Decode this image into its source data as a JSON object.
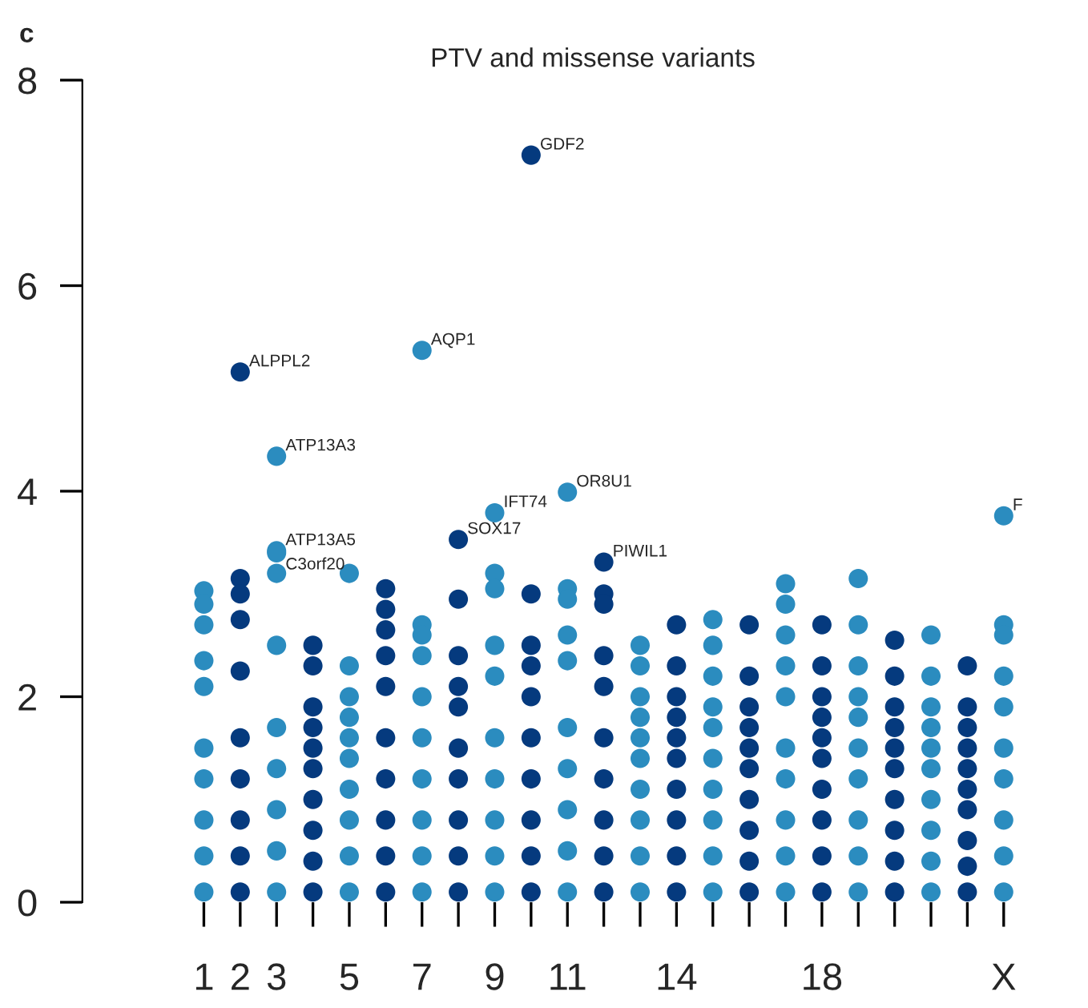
{
  "chart_data": {
    "type": "scatter",
    "title": "PTV and missense variants",
    "categories": [
      "1",
      "2",
      "3",
      null,
      "5",
      null,
      "7",
      null,
      "9",
      null,
      "11",
      null,
      null,
      "14",
      null,
      null,
      null,
      "18",
      null,
      null,
      null,
      null,
      "X"
    ],
    "annotations": [
      "c"
    ],
    "ylim": [
      0,
      8
    ],
    "yticks": [
      0,
      2,
      4,
      6,
      8
    ],
    "grid": false,
    "legend": false,
    "marker": "circle",
    "series": [
      {
        "values": [
          3.03,
          5.16,
          4.34,
          2.5,
          3.2,
          3.05,
          5.37,
          3.53,
          3.79,
          7.27,
          3.99,
          3.31,
          2.5,
          2.7,
          2.75,
          2.7,
          3.1,
          2.7,
          3.15,
          2.55,
          2.6,
          2.3,
          3.76
        ],
        "value_labels": [
          null,
          "ALPPL2",
          "ATP13A3",
          null,
          null,
          null,
          "AQP1",
          "SOX17",
          "IFT74",
          "GDF2",
          "OR8U1",
          "PIWIL1",
          null,
          null,
          null,
          null,
          null,
          null,
          null,
          null,
          null,
          null,
          "F"
        ],
        "colors": [
          "#2b8cbf",
          "#053a7e",
          "#2b8cbf",
          "#053a7e",
          "#2b8cbf",
          "#053a7e",
          "#2b8cbf",
          "#053a7e",
          "#2b8cbf",
          "#053a7e",
          "#2b8cbf",
          "#053a7e",
          "#2b8cbf",
          "#053a7e",
          "#2b8cbf",
          "#053a7e",
          "#2b8cbf",
          "#053a7e",
          "#2b8cbf",
          "#053a7e",
          "#2b8cbf",
          "#053a7e",
          "#2b8cbf"
        ]
      },
      {
        "values": [
          2.9,
          3.15,
          3.42,
          2.3,
          2.3,
          2.85,
          2.7,
          2.95,
          3.2,
          3.0,
          3.05,
          3.0,
          2.3,
          2.3,
          2.5,
          2.2,
          2.9,
          2.3,
          2.7,
          2.2,
          2.2,
          1.9,
          2.7
        ],
        "value_labels": [
          null,
          null,
          "ATP13A5",
          null,
          null,
          null,
          null,
          null,
          null,
          null,
          null,
          null,
          null,
          null,
          null,
          null,
          null,
          null,
          null,
          null,
          null,
          null,
          null
        ],
        "colors": [
          "#2b8cbf",
          "#053a7e",
          "#2b8cbf",
          "#053a7e",
          "#2b8cbf",
          "#053a7e",
          "#2b8cbf",
          "#053a7e",
          "#2b8cbf",
          "#053a7e",
          "#2b8cbf",
          "#053a7e",
          "#2b8cbf",
          "#053a7e",
          "#2b8cbf",
          "#053a7e",
          "#2b8cbf",
          "#053a7e",
          "#2b8cbf",
          "#053a7e",
          "#2b8cbf",
          "#053a7e",
          "#2b8cbf"
        ]
      },
      {
        "values": [
          2.7,
          3.0,
          3.4,
          1.9,
          2.0,
          2.65,
          2.6,
          2.4,
          3.05,
          2.5,
          2.95,
          2.9,
          2.0,
          2.0,
          2.2,
          1.9,
          2.6,
          2.0,
          2.3,
          1.9,
          1.9,
          1.7,
          2.6
        ],
        "value_labels": [
          null,
          null,
          "C3orf20",
          null,
          null,
          null,
          null,
          null,
          null,
          null,
          null,
          null,
          null,
          null,
          null,
          null,
          null,
          null,
          null,
          null,
          null,
          null,
          null
        ],
        "colors": [
          "#2b8cbf",
          "#053a7e",
          "#2b8cbf",
          "#053a7e",
          "#2b8cbf",
          "#053a7e",
          "#2b8cbf",
          "#053a7e",
          "#2b8cbf",
          "#053a7e",
          "#2b8cbf",
          "#053a7e",
          "#2b8cbf",
          "#053a7e",
          "#2b8cbf",
          "#053a7e",
          "#2b8cbf",
          "#053a7e",
          "#2b8cbf",
          "#053a7e",
          "#2b8cbf",
          "#053a7e",
          "#2b8cbf"
        ]
      },
      {
        "values": [
          2.35,
          2.75,
          3.2,
          1.7,
          1.8,
          2.4,
          2.4,
          2.1,
          2.5,
          2.3,
          2.6,
          2.4,
          1.8,
          1.8,
          1.9,
          1.7,
          2.3,
          1.8,
          2.0,
          1.7,
          1.7,
          1.5,
          2.2
        ],
        "colors": [
          "#2b8cbf",
          "#053a7e",
          "#2b8cbf",
          "#053a7e",
          "#2b8cbf",
          "#053a7e",
          "#2b8cbf",
          "#053a7e",
          "#2b8cbf",
          "#053a7e",
          "#2b8cbf",
          "#053a7e",
          "#2b8cbf",
          "#053a7e",
          "#2b8cbf",
          "#053a7e",
          "#2b8cbf",
          "#053a7e",
          "#2b8cbf",
          "#053a7e",
          "#2b8cbf",
          "#053a7e",
          "#2b8cbf"
        ]
      },
      {
        "values": [
          2.1,
          2.25,
          2.5,
          1.5,
          1.6,
          2.1,
          2.0,
          1.9,
          2.2,
          2.0,
          2.35,
          2.1,
          1.6,
          1.6,
          1.7,
          1.5,
          2.0,
          1.6,
          1.8,
          1.5,
          1.5,
          1.3,
          1.9
        ],
        "colors": [
          "#2b8cbf",
          "#053a7e",
          "#2b8cbf",
          "#053a7e",
          "#2b8cbf",
          "#053a7e",
          "#2b8cbf",
          "#053a7e",
          "#2b8cbf",
          "#053a7e",
          "#2b8cbf",
          "#053a7e",
          "#2b8cbf",
          "#053a7e",
          "#2b8cbf",
          "#053a7e",
          "#2b8cbf",
          "#053a7e",
          "#2b8cbf",
          "#053a7e",
          "#2b8cbf",
          "#053a7e",
          "#2b8cbf"
        ]
      },
      {
        "values": [
          1.5,
          1.6,
          1.7,
          1.3,
          1.4,
          1.6,
          1.6,
          1.5,
          1.6,
          1.6,
          1.7,
          1.6,
          1.4,
          1.4,
          1.4,
          1.3,
          1.5,
          1.4,
          1.5,
          1.3,
          1.3,
          1.1,
          1.5
        ],
        "colors": [
          "#2b8cbf",
          "#053a7e",
          "#2b8cbf",
          "#053a7e",
          "#2b8cbf",
          "#053a7e",
          "#2b8cbf",
          "#053a7e",
          "#2b8cbf",
          "#053a7e",
          "#2b8cbf",
          "#053a7e",
          "#2b8cbf",
          "#053a7e",
          "#2b8cbf",
          "#053a7e",
          "#2b8cbf",
          "#053a7e",
          "#2b8cbf",
          "#053a7e",
          "#2b8cbf",
          "#053a7e",
          "#2b8cbf"
        ]
      },
      {
        "values": [
          1.2,
          1.2,
          1.3,
          1.0,
          1.1,
          1.2,
          1.2,
          1.2,
          1.2,
          1.2,
          1.3,
          1.2,
          1.1,
          1.1,
          1.1,
          1.0,
          1.2,
          1.1,
          1.2,
          1.0,
          1.0,
          0.9,
          1.2
        ],
        "colors": [
          "#2b8cbf",
          "#053a7e",
          "#2b8cbf",
          "#053a7e",
          "#2b8cbf",
          "#053a7e",
          "#2b8cbf",
          "#053a7e",
          "#2b8cbf",
          "#053a7e",
          "#2b8cbf",
          "#053a7e",
          "#2b8cbf",
          "#053a7e",
          "#2b8cbf",
          "#053a7e",
          "#2b8cbf",
          "#053a7e",
          "#2b8cbf",
          "#053a7e",
          "#2b8cbf",
          "#053a7e",
          "#2b8cbf"
        ]
      },
      {
        "values": [
          0.8,
          0.8,
          0.9,
          0.7,
          0.8,
          0.8,
          0.8,
          0.8,
          0.8,
          0.8,
          0.9,
          0.8,
          0.8,
          0.8,
          0.8,
          0.7,
          0.8,
          0.8,
          0.8,
          0.7,
          0.7,
          0.6,
          0.8
        ],
        "colors": [
          "#2b8cbf",
          "#053a7e",
          "#2b8cbf",
          "#053a7e",
          "#2b8cbf",
          "#053a7e",
          "#2b8cbf",
          "#053a7e",
          "#2b8cbf",
          "#053a7e",
          "#2b8cbf",
          "#053a7e",
          "#2b8cbf",
          "#053a7e",
          "#2b8cbf",
          "#053a7e",
          "#2b8cbf",
          "#053a7e",
          "#2b8cbf",
          "#053a7e",
          "#2b8cbf",
          "#053a7e",
          "#2b8cbf"
        ]
      },
      {
        "values": [
          0.45,
          0.45,
          0.5,
          0.4,
          0.45,
          0.45,
          0.45,
          0.45,
          0.45,
          0.45,
          0.5,
          0.45,
          0.45,
          0.45,
          0.45,
          0.4,
          0.45,
          0.45,
          0.45,
          0.4,
          0.4,
          0.35,
          0.45
        ],
        "colors": [
          "#2b8cbf",
          "#053a7e",
          "#2b8cbf",
          "#053a7e",
          "#2b8cbf",
          "#053a7e",
          "#2b8cbf",
          "#053a7e",
          "#2b8cbf",
          "#053a7e",
          "#2b8cbf",
          "#053a7e",
          "#2b8cbf",
          "#053a7e",
          "#2b8cbf",
          "#053a7e",
          "#2b8cbf",
          "#053a7e",
          "#2b8cbf",
          "#053a7e",
          "#2b8cbf",
          "#053a7e",
          "#2b8cbf"
        ]
      },
      {
        "values": [
          0.1,
          0.1,
          0.1,
          0.1,
          0.1,
          0.1,
          0.1,
          0.1,
          0.1,
          0.1,
          0.1,
          0.1,
          0.1,
          0.1,
          0.1,
          0.1,
          0.1,
          0.1,
          0.1,
          0.1,
          0.1,
          0.1,
          0.1
        ],
        "colors": [
          "#2b8cbf",
          "#053a7e",
          "#2b8cbf",
          "#053a7e",
          "#2b8cbf",
          "#053a7e",
          "#2b8cbf",
          "#053a7e",
          "#2b8cbf",
          "#053a7e",
          "#2b8cbf",
          "#053a7e",
          "#2b8cbf",
          "#053a7e",
          "#2b8cbf",
          "#053a7e",
          "#2b8cbf",
          "#053a7e",
          "#2b8cbf",
          "#053a7e",
          "#2b8cbf",
          "#053a7e",
          "#2b8cbf"
        ]
      }
    ]
  }
}
